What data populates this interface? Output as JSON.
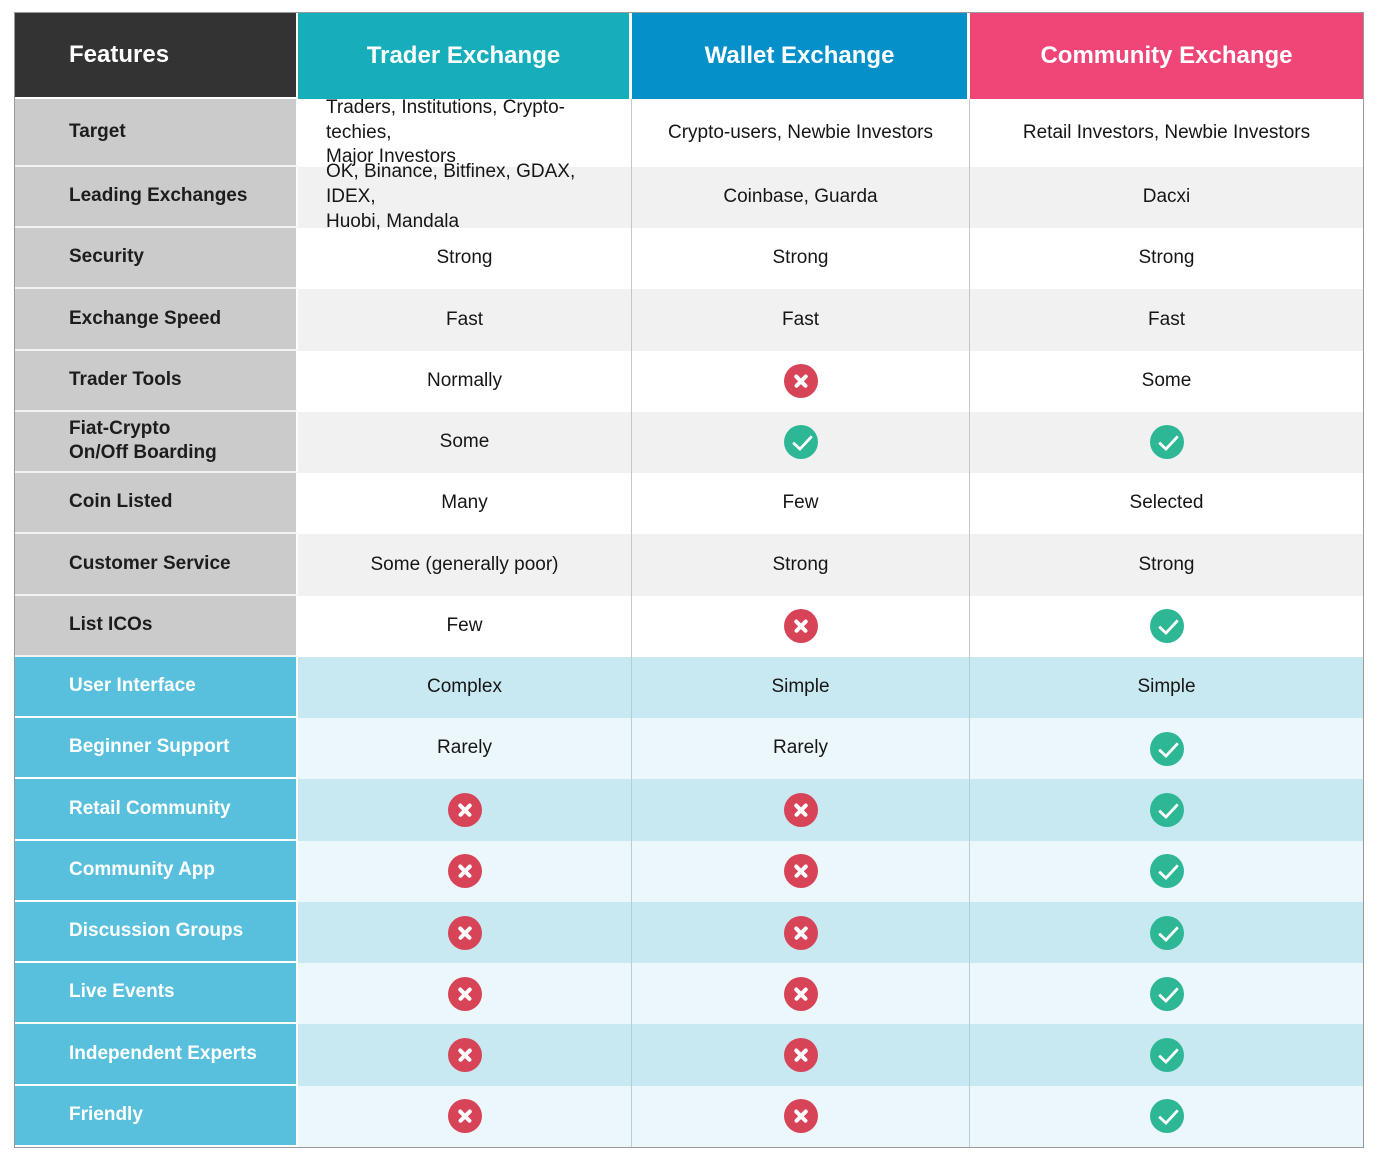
{
  "table": {
    "header": {
      "features": "Features",
      "columns": [
        {
          "label": "Trader Exchange",
          "color": "#15aeba"
        },
        {
          "label": "Wallet Exchange",
          "color": "#0590ca"
        },
        {
          "label": "Community Exchange",
          "color": "#ef4677"
        }
      ]
    },
    "colors": {
      "features_header_bg": "#333333",
      "feature_cell_gray": "#cbcbcb",
      "feature_cell_blue": "#58c0dd",
      "stripe_gray": "#f1f1f1",
      "stripe_blue_dark": "#c9e9f2",
      "stripe_blue_light": "#ebf7fb",
      "cross_icon": "#d74457",
      "check_icon": "#2eb795"
    },
    "rows": [
      {
        "feature": "Target",
        "cells": [
          {
            "type": "text",
            "value": "Traders, Institutions, Crypto-techies,\nMajor Investors"
          },
          {
            "type": "text",
            "value": "Crypto-users, Newbie Investors"
          },
          {
            "type": "text",
            "value": "Retail Investors, Newbie Investors"
          }
        ]
      },
      {
        "feature": "Leading Exchanges",
        "cells": [
          {
            "type": "text",
            "value": "OK, Binance, Bitfinex, GDAX, IDEX,\nHuobi, Mandala"
          },
          {
            "type": "text",
            "value": "Coinbase, Guarda"
          },
          {
            "type": "text",
            "value": "Dacxi"
          }
        ]
      },
      {
        "feature": "Security",
        "cells": [
          {
            "type": "text",
            "value": "Strong"
          },
          {
            "type": "text",
            "value": "Strong"
          },
          {
            "type": "text",
            "value": "Strong"
          }
        ]
      },
      {
        "feature": "Exchange Speed",
        "cells": [
          {
            "type": "text",
            "value": "Fast"
          },
          {
            "type": "text",
            "value": "Fast"
          },
          {
            "type": "text",
            "value": "Fast"
          }
        ]
      },
      {
        "feature": "Trader Tools",
        "cells": [
          {
            "type": "text",
            "value": "Normally"
          },
          {
            "type": "icon",
            "icon": "cross-icon"
          },
          {
            "type": "text",
            "value": "Some"
          }
        ]
      },
      {
        "feature": "Fiat-Crypto\nOn/Off Boarding",
        "cells": [
          {
            "type": "text",
            "value": "Some"
          },
          {
            "type": "icon",
            "icon": "check-icon"
          },
          {
            "type": "icon",
            "icon": "check-icon"
          }
        ]
      },
      {
        "feature": "Coin Listed",
        "cells": [
          {
            "type": "text",
            "value": "Many"
          },
          {
            "type": "text",
            "value": "Few"
          },
          {
            "type": "text",
            "value": "Selected"
          }
        ]
      },
      {
        "feature": "Customer Service",
        "cells": [
          {
            "type": "text",
            "value": "Some (generally poor)"
          },
          {
            "type": "text",
            "value": "Strong"
          },
          {
            "type": "text",
            "value": "Strong"
          }
        ]
      },
      {
        "feature": "List ICOs",
        "cells": [
          {
            "type": "text",
            "value": "Few"
          },
          {
            "type": "icon",
            "icon": "cross-icon"
          },
          {
            "type": "icon",
            "icon": "check-icon"
          }
        ]
      },
      {
        "feature": "User Interface",
        "cells": [
          {
            "type": "text",
            "value": "Complex"
          },
          {
            "type": "text",
            "value": "Simple"
          },
          {
            "type": "text",
            "value": "Simple"
          }
        ]
      },
      {
        "feature": "Beginner Support",
        "cells": [
          {
            "type": "text",
            "value": "Rarely"
          },
          {
            "type": "text",
            "value": "Rarely"
          },
          {
            "type": "icon",
            "icon": "check-icon"
          }
        ]
      },
      {
        "feature": "Retail Community",
        "cells": [
          {
            "type": "icon",
            "icon": "cross-icon"
          },
          {
            "type": "icon",
            "icon": "cross-icon"
          },
          {
            "type": "icon",
            "icon": "check-icon"
          }
        ]
      },
      {
        "feature": "Community App",
        "cells": [
          {
            "type": "icon",
            "icon": "cross-icon"
          },
          {
            "type": "icon",
            "icon": "cross-icon"
          },
          {
            "type": "icon",
            "icon": "check-icon"
          }
        ]
      },
      {
        "feature": "Discussion Groups",
        "cells": [
          {
            "type": "icon",
            "icon": "cross-icon"
          },
          {
            "type": "icon",
            "icon": "cross-icon"
          },
          {
            "type": "icon",
            "icon": "check-icon"
          }
        ]
      },
      {
        "feature": "Live Events",
        "cells": [
          {
            "type": "icon",
            "icon": "cross-icon"
          },
          {
            "type": "icon",
            "icon": "cross-icon"
          },
          {
            "type": "icon",
            "icon": "check-icon"
          }
        ]
      },
      {
        "feature": "Independent Experts",
        "cells": [
          {
            "type": "icon",
            "icon": "cross-icon"
          },
          {
            "type": "icon",
            "icon": "cross-icon"
          },
          {
            "type": "icon",
            "icon": "check-icon"
          }
        ]
      },
      {
        "feature": "Friendly",
        "cells": [
          {
            "type": "icon",
            "icon": "cross-icon"
          },
          {
            "type": "icon",
            "icon": "cross-icon"
          },
          {
            "type": "icon",
            "icon": "check-icon"
          }
        ]
      }
    ]
  }
}
